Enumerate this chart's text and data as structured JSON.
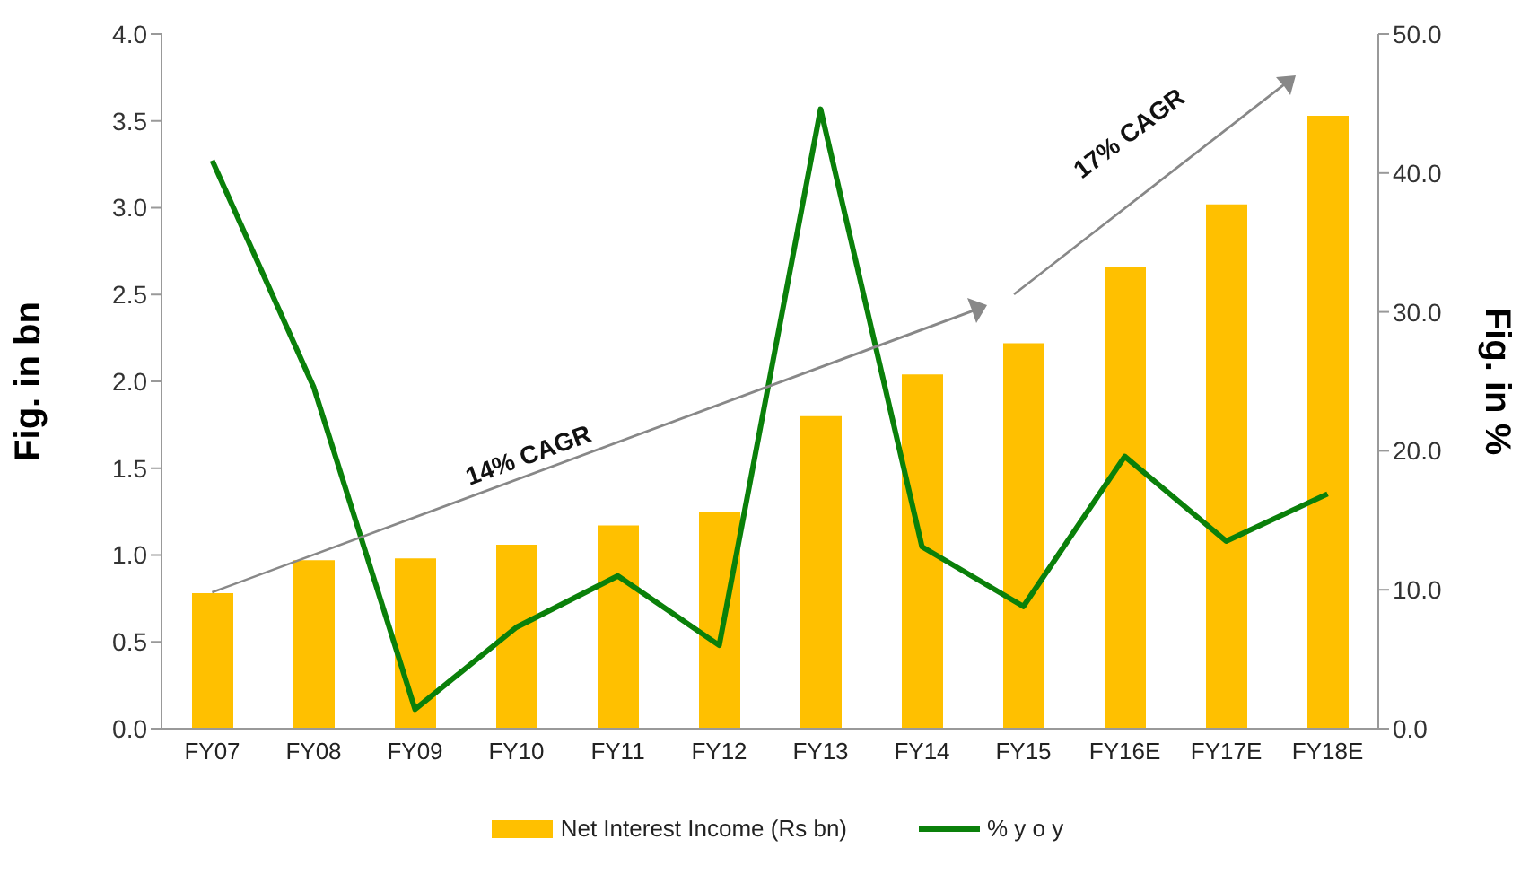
{
  "chart_data": {
    "type": "bar",
    "ylabel": "Fig. in bn",
    "y2label": "Fig. in %",
    "categories": [
      "FY07",
      "FY08",
      "FY09",
      "FY10",
      "FY11",
      "FY12",
      "FY13",
      "FY14",
      "FY15",
      "FY16E",
      "FY17E",
      "FY18E"
    ],
    "series": [
      {
        "name": "Net Interest Income (Rs bn)",
        "color": "#ffc000",
        "values": [
          0.78,
          0.97,
          0.98,
          1.06,
          1.17,
          1.25,
          1.8,
          2.04,
          2.22,
          2.66,
          3.02,
          3.53
        ]
      },
      {
        "name": "% y o y",
        "type": "line",
        "axis": "y2",
        "color": "#0a800a",
        "values": [
          40.9,
          24.6,
          1.4,
          7.3,
          11.0,
          6.0,
          44.6,
          13.1,
          8.8,
          19.6,
          13.5,
          16.9
        ]
      }
    ],
    "ylim": [
      0,
      4
    ],
    "yticks": [
      {
        "value": 0,
        "label": "0.0"
      },
      {
        "value": 0.5,
        "label": "0.5"
      },
      {
        "value": 1,
        "label": "1.0"
      },
      {
        "value": 1.5,
        "label": "1.5"
      },
      {
        "value": 2,
        "label": "2.0"
      },
      {
        "value": 2.5,
        "label": "2.5"
      },
      {
        "value": 3,
        "label": "3.0"
      },
      {
        "value": 3.5,
        "label": "3.5"
      },
      {
        "value": 4,
        "label": "4.0"
      }
    ],
    "y2lim": [
      0,
      50
    ],
    "y2ticks": [
      {
        "value": 0,
        "label": "0.0"
      },
      {
        "value": 10,
        "label": "10.0"
      },
      {
        "value": 20,
        "label": "20.0"
      },
      {
        "value": 30,
        "label": "30.0"
      },
      {
        "value": 40,
        "label": "40.0"
      },
      {
        "value": 50,
        "label": "50.0"
      }
    ],
    "annotations": [
      "14% CAGR",
      "17% CAGR"
    ],
    "grid": false,
    "legend": "bottom",
    "marker": "none",
    "line_style": "solid"
  }
}
